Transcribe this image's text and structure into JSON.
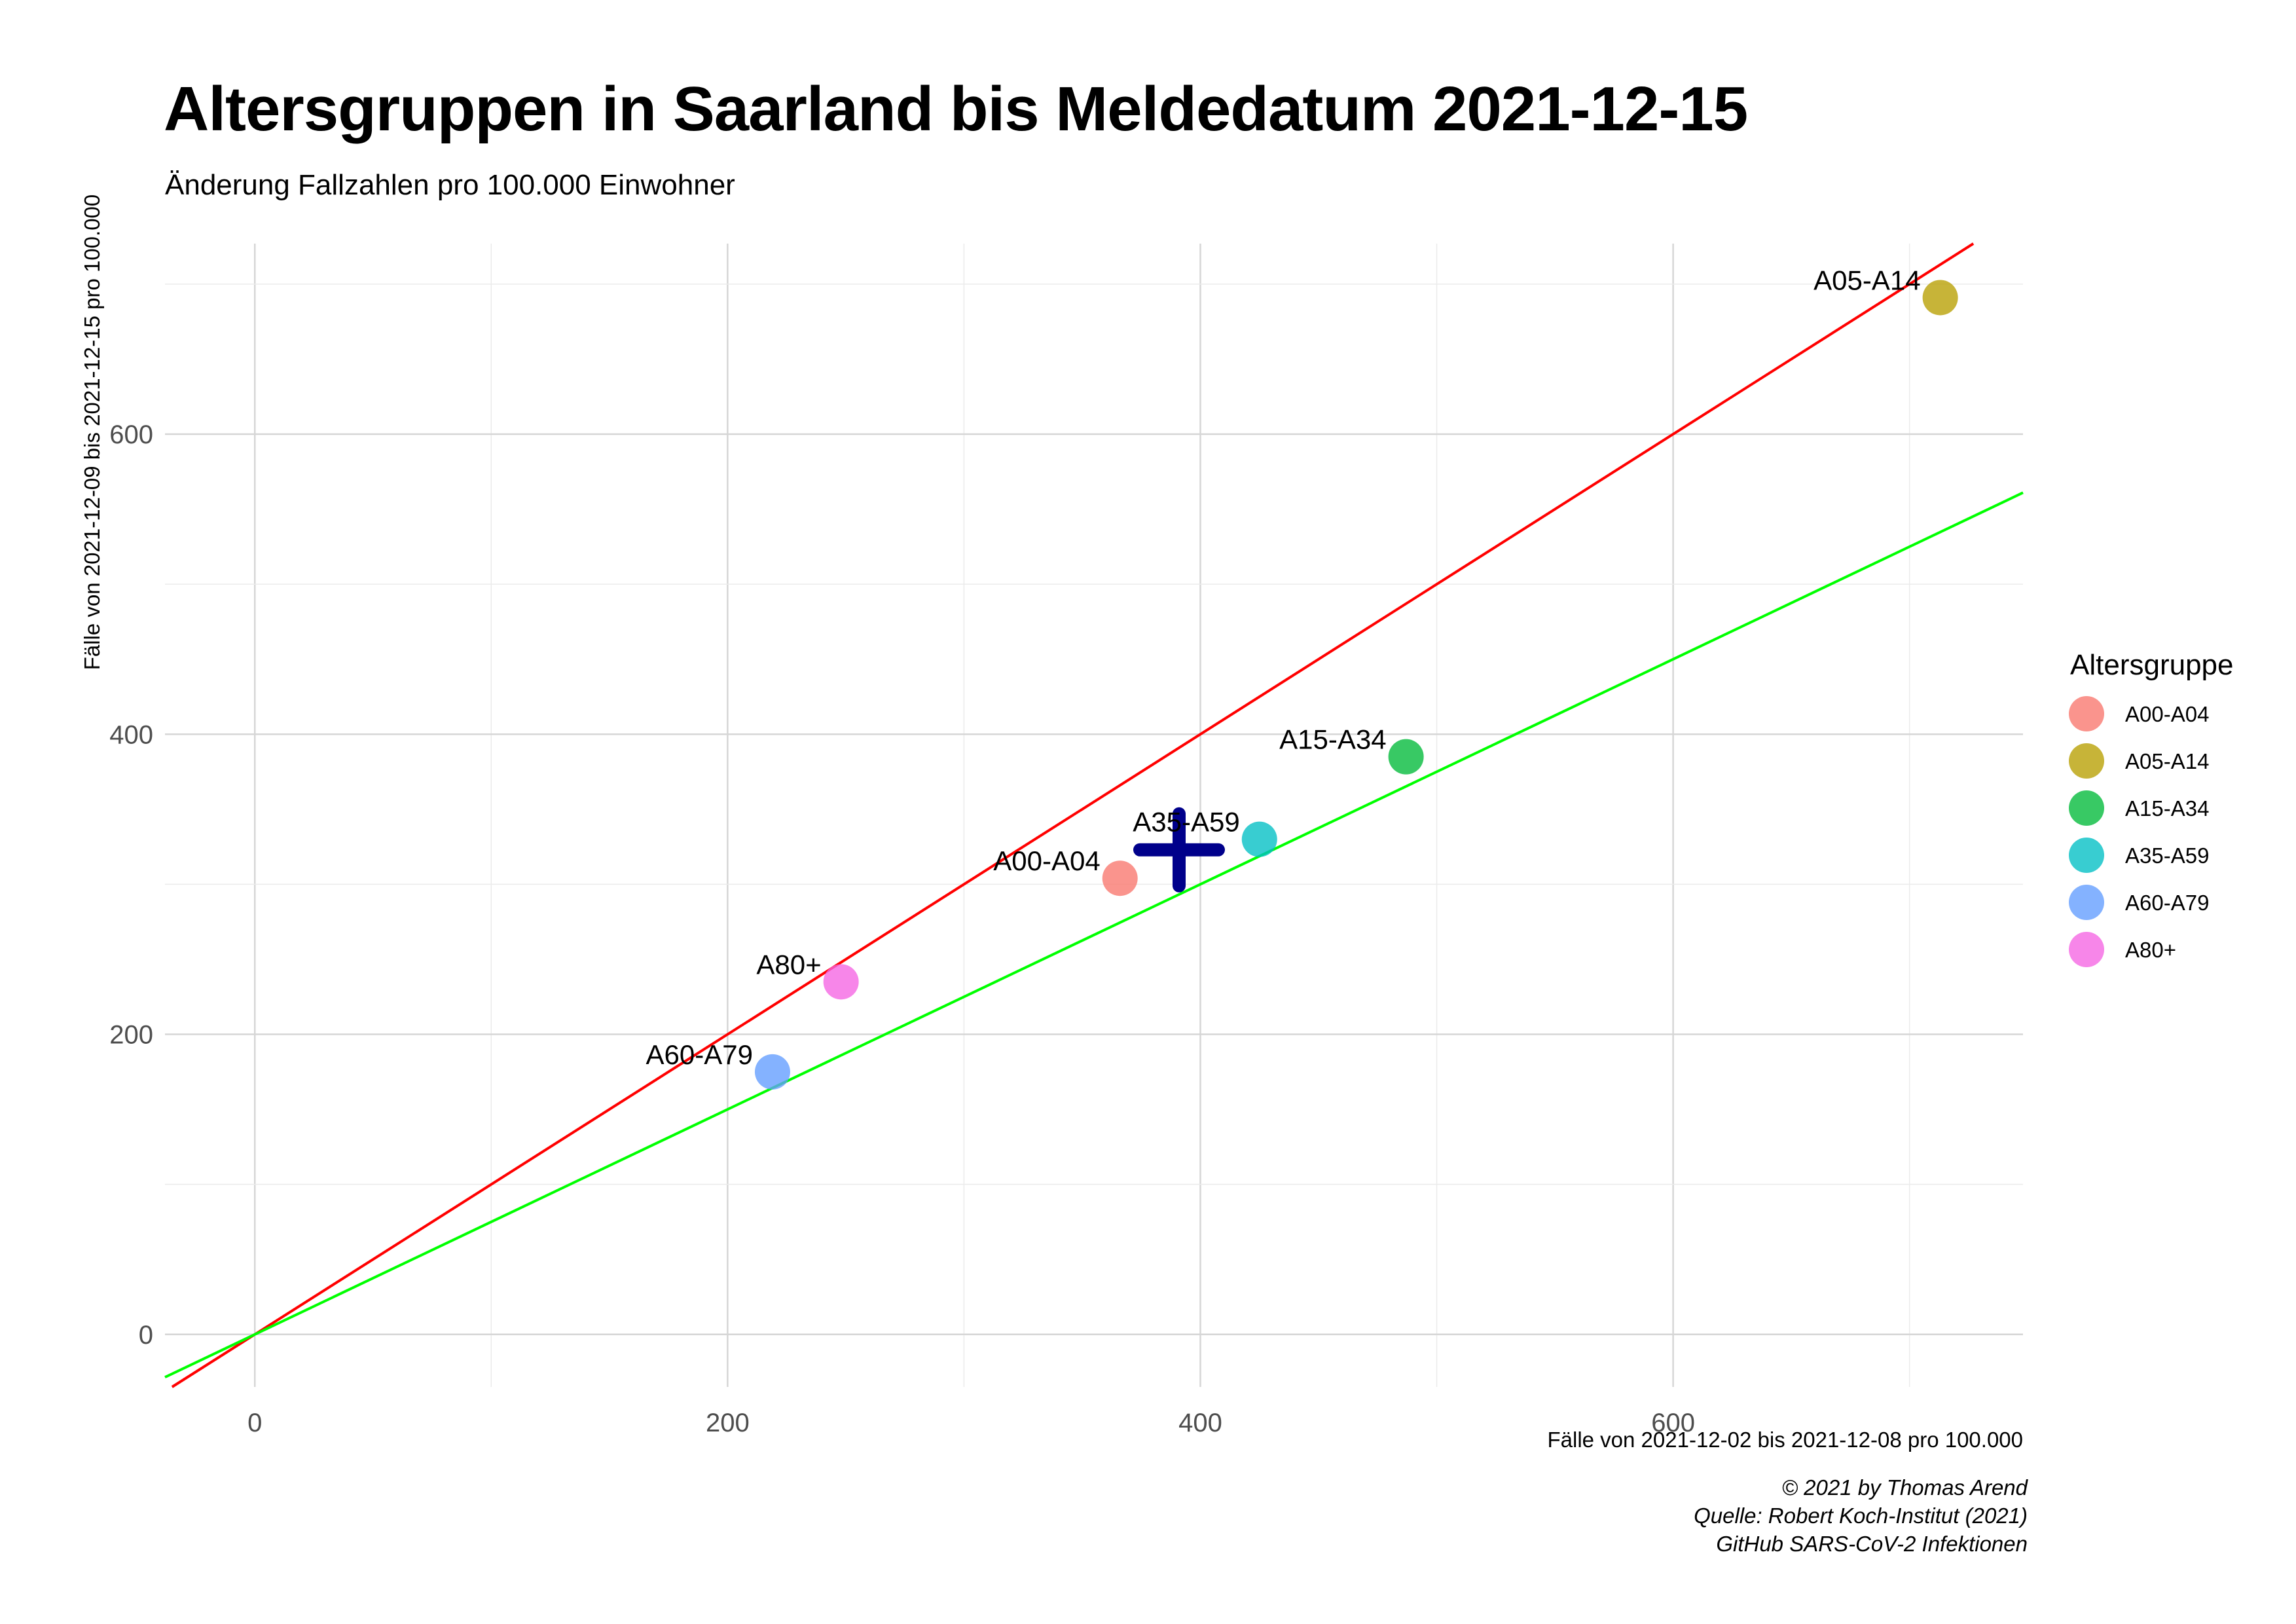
{
  "chart_data": {
    "type": "scatter",
    "title": "Altersgruppen in Saarland bis Meldedatum 2021-12-15",
    "subtitle": "Änderung Fallzahlen pro 100.000 Einwohner",
    "xlabel": "Fälle von 2021-12-02 bis 2021-12-08 pro 100.000",
    "ylabel": "Fälle von 2021-12-09 bis 2021-12-15 pro 100.000",
    "xlim": [
      -38,
      748
    ],
    "ylim": [
      -35,
      727
    ],
    "x_ticks": [
      0,
      200,
      400,
      600
    ],
    "y_ticks": [
      0,
      200,
      400,
      600
    ],
    "grid": true,
    "legend_title": "Altersgruppe",
    "legend_position": "right",
    "points": [
      {
        "label": "A00-A04",
        "x": 366,
        "y": 304,
        "color": "#F8766D"
      },
      {
        "label": "A05-A14",
        "x": 713,
        "y": 691,
        "color": "#B79F00"
      },
      {
        "label": "A15-A34",
        "x": 487,
        "y": 385,
        "color": "#00BA38"
      },
      {
        "label": "A35-A59",
        "x": 425,
        "y": 330,
        "color": "#00BFC4"
      },
      {
        "label": "A60-A79",
        "x": 219,
        "y": 175,
        "color": "#619CFF"
      },
      {
        "label": "A80+",
        "x": 248,
        "y": 235,
        "color": "#F564E3"
      }
    ],
    "center_marker": {
      "x": 391,
      "y": 323,
      "color": "#00008B"
    },
    "reference_lines": [
      {
        "slope": 1.0,
        "intercept": 0,
        "color": "#FF0000"
      },
      {
        "slope": 0.75,
        "intercept": 0,
        "color": "#00FF00"
      }
    ]
  },
  "caption": [
    "© 2021 by Thomas Arend",
    "Quelle: Robert Koch-Institut (2021)",
    "GitHub SARS-CoV-2 Infektionen"
  ]
}
